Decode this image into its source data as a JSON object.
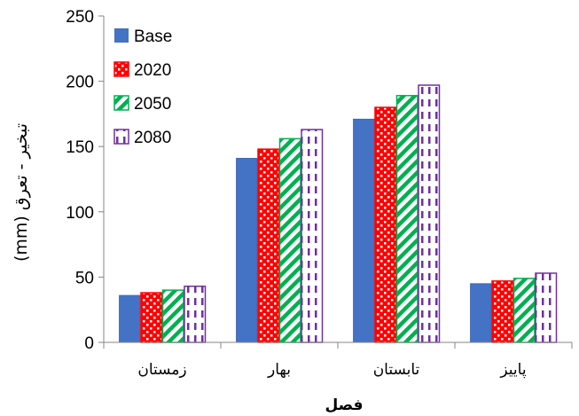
{
  "chart_data": {
    "type": "bar",
    "title": "",
    "xlabel": "فصل",
    "ylabel": "تبخیر - تعرق (mm)",
    "categories": [
      "زمستان",
      "بهار",
      "تابستان",
      "پاییز"
    ],
    "ylim": [
      0,
      250
    ],
    "yticks": [
      0,
      50,
      100,
      150,
      200,
      250
    ],
    "grid": false,
    "legend_position": "top-left",
    "series": [
      {
        "name": "Base",
        "values": [
          36,
          141,
          171,
          45
        ],
        "color": "#4472c4",
        "pattern": "solid"
      },
      {
        "name": "2020",
        "values": [
          38,
          148,
          180,
          47
        ],
        "color": "#ff0000",
        "pattern": "dots"
      },
      {
        "name": "2050",
        "values": [
          40,
          156,
          189,
          49
        ],
        "color": "#00b050",
        "pattern": "diagonal-stripes"
      },
      {
        "name": "2080",
        "values": [
          43,
          163,
          197,
          53
        ],
        "color": "#7030a0",
        "pattern": "dashed-vertical"
      }
    ]
  }
}
